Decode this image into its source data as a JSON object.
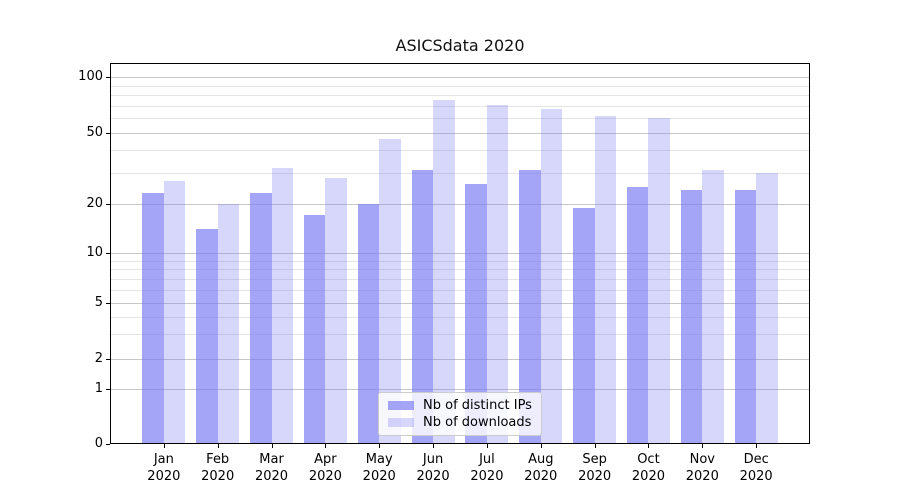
{
  "figure": {
    "title": "ASICSdata 2020"
  },
  "chart_data": {
    "type": "bar",
    "title": "ASICSdata 2020",
    "categories": [
      "Jan",
      "Feb",
      "Mar",
      "Apr",
      "May",
      "Jun",
      "Jul",
      "Aug",
      "Sep",
      "Oct",
      "Nov",
      "Dec"
    ],
    "category_year": "2020",
    "series": [
      {
        "name": "Nb of distinct IPs",
        "base_color": "#7a7af5",
        "alpha": 0.68,
        "effective_color": "#a5a5f8",
        "values": [
          23,
          14,
          23,
          17,
          20,
          31,
          26,
          31,
          19,
          25,
          24,
          24
        ]
      },
      {
        "name": "Nb of downloads",
        "base_color": "#7a7af5",
        "alpha": 0.3,
        "effective_color": "#d7d7fb",
        "values": [
          27,
          20,
          32,
          28,
          46,
          75,
          71,
          67,
          62,
          60,
          31,
          30
        ]
      }
    ],
    "xlabel": "",
    "ylabel": "",
    "yscale": "symlog",
    "ylim": [
      0,
      123
    ],
    "yticks": [
      0,
      1,
      2,
      5,
      10,
      20,
      50,
      100
    ],
    "minor_yticks": [
      3,
      4,
      6,
      7,
      8,
      9,
      30,
      40,
      60,
      70,
      80,
      90
    ],
    "grid": true,
    "legend_position": "lower-center"
  }
}
